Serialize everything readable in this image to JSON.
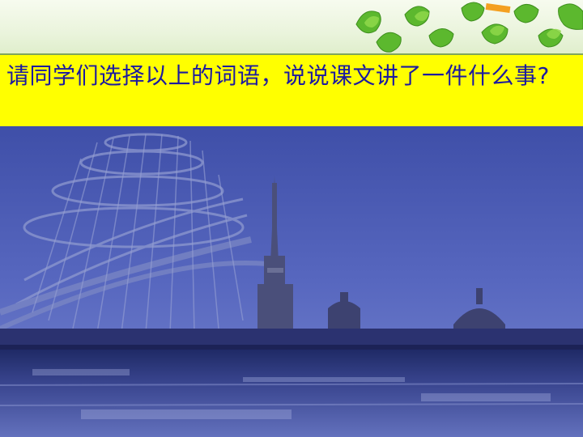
{
  "slide": {
    "question": "请同学们选择以上的词语，说说课文讲了一件什么事?",
    "image_subject": "tower-and-spire-cityscape"
  },
  "colors": {
    "question_background": "#ffff00",
    "question_text": "#1c1aa0",
    "banner": "#eaf4dc",
    "leaves": "#5cb82e",
    "photo_sky": "#4d5fb5"
  }
}
